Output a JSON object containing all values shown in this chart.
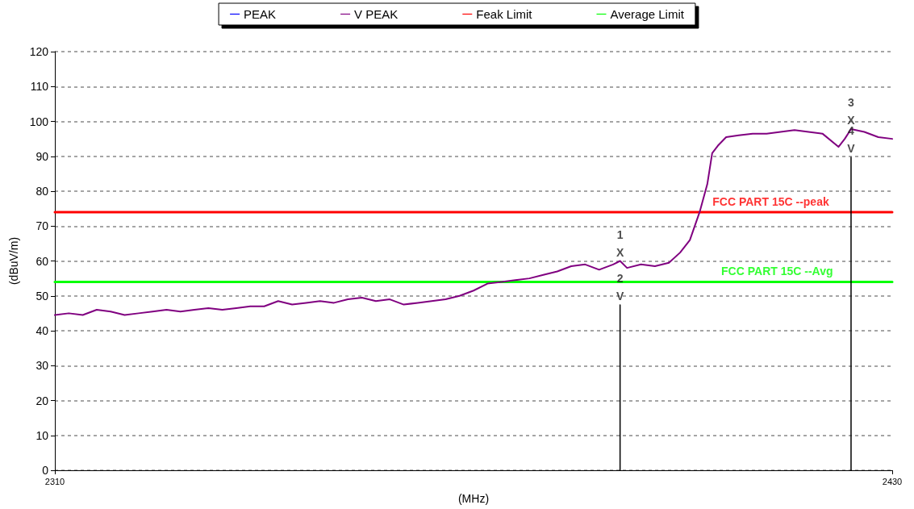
{
  "chart_data": {
    "type": "line",
    "xlabel": "(MHz)",
    "ylabel": "(dBuV/m)",
    "xlim": [
      2310,
      2430
    ],
    "xticks": [
      2310,
      2430
    ],
    "ylim": [
      0,
      120
    ],
    "yticks": [
      0,
      10,
      20,
      30,
      40,
      50,
      60,
      70,
      80,
      90,
      100,
      110,
      120
    ],
    "grid": "y",
    "legend": "top",
    "marker": "none",
    "line_style": "solid",
    "series": [
      {
        "name": "PEAK",
        "color": "#0000ff"
      },
      {
        "name": "V PEAK",
        "color": "#800080",
        "x": [
          2310,
          2312,
          2314,
          2316,
          2318,
          2320,
          2322,
          2324,
          2326,
          2328,
          2330,
          2332,
          2334,
          2336,
          2338,
          2340,
          2342,
          2344,
          2346,
          2348,
          2350,
          2352,
          2354,
          2356,
          2358,
          2360,
          2362,
          2364,
          2366,
          2368,
          2370,
          2372,
          2374,
          2376,
          2378,
          2380,
          2382,
          2384,
          2386,
          2388,
          2390,
          2391,
          2392,
          2394,
          2396,
          2398,
          2399.6,
          2401,
          2402.4,
          2403.5,
          2404.2,
          2405,
          2406.2,
          2408,
          2410,
          2412,
          2414,
          2416,
          2418,
          2420,
          2422.3,
          2423.2,
          2424.1,
          2426,
          2428,
          2430
        ],
        "values": [
          44.5,
          45,
          44.5,
          46,
          45.5,
          44.5,
          45,
          45.5,
          46,
          45.5,
          46,
          46.5,
          46,
          46.5,
          47,
          47,
          48.5,
          47.5,
          48,
          48.5,
          48,
          49,
          49.5,
          48.5,
          49,
          47.5,
          48,
          48.5,
          49,
          50,
          51.5,
          53.5,
          54,
          54.5,
          55,
          56,
          57,
          58.5,
          59,
          57.5,
          59,
          60,
          58,
          59,
          58.5,
          59.5,
          62.4,
          66,
          74,
          82,
          90.9,
          93,
          95.5,
          96,
          96.5,
          96.5,
          97,
          97.5,
          97,
          96.5,
          92.7,
          95,
          97.8,
          97,
          95.5,
          95
        ]
      },
      {
        "name": "Feak Limit",
        "color": "#ff0000",
        "x": [
          2310,
          2430
        ],
        "values": [
          74,
          74
        ]
      },
      {
        "name": "Average Limit",
        "color": "#00ff00",
        "x": [
          2310,
          2430
        ],
        "values": [
          54,
          54
        ]
      },
      {
        "color": "#000000",
        "x": [
          2391,
          2391
        ],
        "values": [
          0,
          47.4
        ]
      },
      {
        "color": "#000000",
        "x": [
          2424.1,
          2424.1
        ],
        "values": [
          0,
          89.7
        ]
      }
    ],
    "annotations": [
      {
        "text": "1\nX",
        "x": 2391,
        "y": 60
      },
      {
        "text": "2\nV",
        "x": 2391,
        "y": 47.4
      },
      {
        "text": "3\nX",
        "x": 2424.1,
        "y": 97.8
      },
      {
        "text": "4\nV",
        "x": 2424.1,
        "y": 89.7
      },
      {
        "text": "FCC PART 15C --peak",
        "x": 2412.6,
        "y": 74
      },
      {
        "text": "FCC PART 15C --Avg",
        "x": 2413.5,
        "y": 54
      }
    ]
  }
}
